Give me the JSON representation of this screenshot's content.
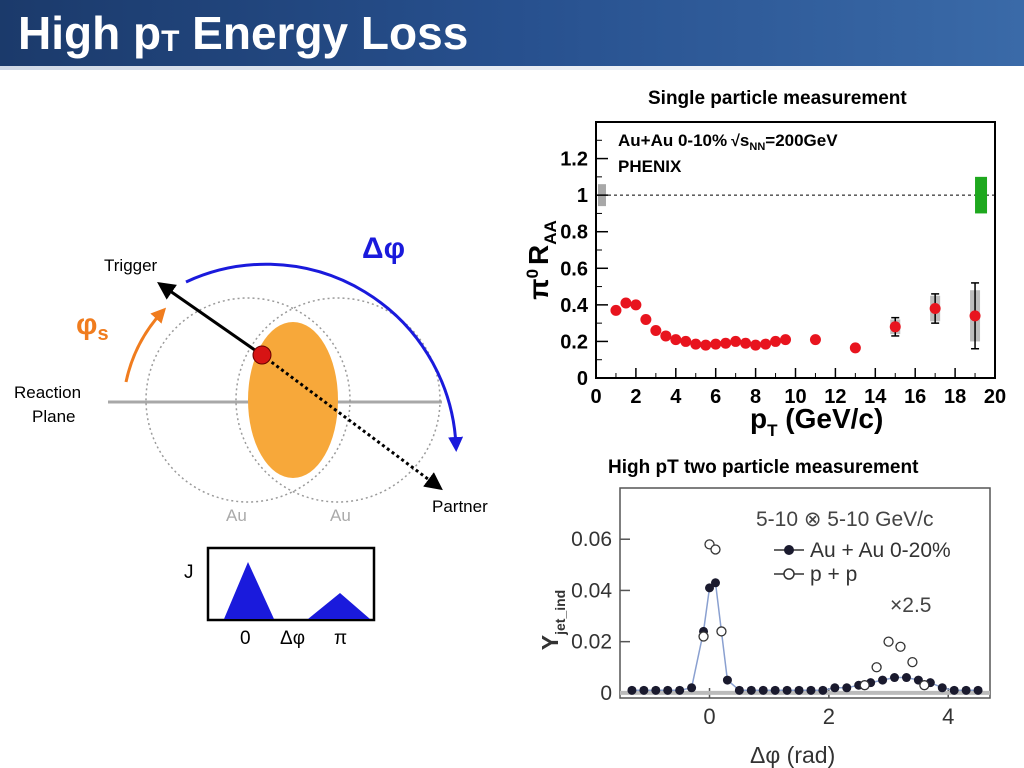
{
  "slide": {
    "title_main": "High p",
    "title_sub": "T",
    "title_rest": " Energy Loss"
  },
  "diagram": {
    "trigger": "Trigger",
    "partner": "Partner",
    "reaction_plane_1": "Reaction",
    "reaction_plane_2": "Plane",
    "phi_s": "φ",
    "phi_s_sub": "s",
    "delta_phi": "Δφ",
    "au_left": "Au",
    "au_right": "Au",
    "colors": {
      "overlap": "#f7a83a",
      "arrow": "#1a1adc",
      "phi_s": "#f07c1e",
      "dot": "#d71414"
    }
  },
  "inset": {
    "ylabel": "J",
    "ticks": [
      "0",
      "Δφ",
      "π"
    ]
  },
  "chart_data": [
    {
      "type": "scatter",
      "title": "Single particle measurement",
      "xlabel_main": "p",
      "xlabel_sub": "T",
      "xlabel_rest": " (GeV/c)",
      "ylabel": "π⁰ R_AA",
      "ylabel_pi": "π",
      "ylabel_zero": "0",
      "ylabel_r": "R",
      "ylabel_aa": "AA",
      "annotation_1": "Au+Au 0-10%",
      "annotation_1b": "s",
      "annotation_1c": "NN",
      "annotation_1d": "=200GeV",
      "annotation_2": "PHENIX",
      "xlim": [
        0,
        20
      ],
      "ylim": [
        0,
        1.4
      ],
      "x_ticks": [
        0,
        2,
        4,
        6,
        8,
        10,
        12,
        14,
        16,
        18,
        20
      ],
      "x_tick_labels": [
        "0",
        "2",
        "4",
        "6",
        "8",
        "10",
        "12",
        "14",
        "16",
        "18",
        "20"
      ],
      "y_ticks": [
        0,
        0.2,
        0.4,
        0.6,
        0.8,
        1,
        1.2
      ],
      "y_tick_labels": [
        "0",
        "0.2",
        "0.4",
        "0.6",
        "0.8",
        "1",
        "1.2"
      ],
      "reference_line": 1,
      "marker_color": "#e8141e",
      "points": [
        {
          "x": 1.0,
          "y": 0.37
        },
        {
          "x": 1.5,
          "y": 0.41
        },
        {
          "x": 2.0,
          "y": 0.4
        },
        {
          "x": 2.5,
          "y": 0.32
        },
        {
          "x": 3.0,
          "y": 0.26
        },
        {
          "x": 3.5,
          "y": 0.23
        },
        {
          "x": 4.0,
          "y": 0.21
        },
        {
          "x": 4.5,
          "y": 0.2
        },
        {
          "x": 5.0,
          "y": 0.185
        },
        {
          "x": 5.5,
          "y": 0.18
        },
        {
          "x": 6.0,
          "y": 0.185
        },
        {
          "x": 6.5,
          "y": 0.19
        },
        {
          "x": 7.0,
          "y": 0.2
        },
        {
          "x": 7.5,
          "y": 0.19
        },
        {
          "x": 8.0,
          "y": 0.18
        },
        {
          "x": 8.5,
          "y": 0.185
        },
        {
          "x": 9.0,
          "y": 0.2
        },
        {
          "x": 9.5,
          "y": 0.21
        },
        {
          "x": 11.0,
          "y": 0.21
        },
        {
          "x": 13.0,
          "y": 0.165
        },
        {
          "x": 15.0,
          "y": 0.28,
          "err": 0.05,
          "sys": 0.04
        },
        {
          "x": 17.0,
          "y": 0.38,
          "err": 0.08,
          "sys": 0.07
        },
        {
          "x": 19.0,
          "y": 0.34,
          "err": 0.18,
          "sys": 0.14
        }
      ],
      "left_norm_box": {
        "x": 0.3,
        "ylo": 0.94,
        "yhi": 1.06,
        "color": "#a8a8a8"
      },
      "right_norm_box": {
        "x": 19.3,
        "ylo": 0.9,
        "yhi": 1.1,
        "color": "#1ea81e"
      }
    },
    {
      "type": "scatter",
      "title": "High pT two particle measurement",
      "xlabel": "Δφ (rad)",
      "ylabel": "Y",
      "ylabel_sub": "jet_ind",
      "annotation_1": "5-10 ⊗ 5-10 GeV/c",
      "annotation_2": "×2.5",
      "xlim": [
        -1.5,
        4.7
      ],
      "ylim": [
        -0.002,
        0.08
      ],
      "x_ticks": [
        0,
        2,
        4
      ],
      "x_tick_labels": [
        "0",
        "2",
        "4"
      ],
      "y_ticks": [
        0,
        0.02,
        0.04,
        0.06
      ],
      "y_tick_labels": [
        "0",
        "0.02",
        "0.04",
        "0.06"
      ],
      "series": [
        {
          "name": "Au + Au 0-20%",
          "marker": "filled",
          "color": "#1a1a2e",
          "x": [
            -1.3,
            -1.1,
            -0.9,
            -0.7,
            -0.5,
            -0.3,
            -0.1,
            0.0,
            0.1,
            0.3,
            0.5,
            0.7,
            0.9,
            1.1,
            1.3,
            1.5,
            1.7,
            1.9,
            2.1,
            2.3,
            2.5,
            2.7,
            2.9,
            3.1,
            3.3,
            3.5,
            3.7,
            3.9,
            4.1,
            4.3,
            4.5
          ],
          "y": [
            0.001,
            0.001,
            0.001,
            0.001,
            0.001,
            0.002,
            0.024,
            0.041,
            0.043,
            0.005,
            0.001,
            0.001,
            0.001,
            0.001,
            0.001,
            0.001,
            0.001,
            0.001,
            0.002,
            0.002,
            0.003,
            0.004,
            0.005,
            0.006,
            0.006,
            0.005,
            0.004,
            0.002,
            0.001,
            0.001,
            0.001
          ]
        },
        {
          "name": "p + p",
          "marker": "open",
          "color": "#333333",
          "x": [
            -0.1,
            0.0,
            0.1,
            0.2,
            2.6,
            2.8,
            3.0,
            3.2,
            3.4,
            3.6
          ],
          "y": [
            0.022,
            0.058,
            0.056,
            0.024,
            0.003,
            0.01,
            0.02,
            0.018,
            0.012,
            0.003
          ]
        }
      ]
    }
  ]
}
